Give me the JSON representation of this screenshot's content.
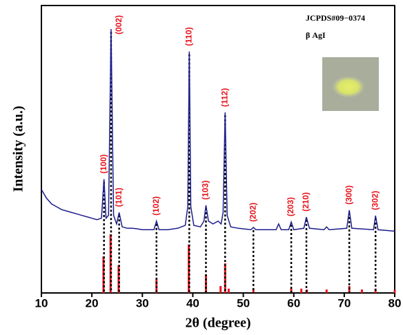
{
  "chart_data": {
    "type": "line",
    "x_label": "2θ (degree)",
    "y_label": "Intensity (a.u.)",
    "annotations": [
      "JCPDS#09−0374",
      "β AgI"
    ],
    "xlim": [
      10,
      80
    ],
    "xticks": [
      10,
      20,
      30,
      40,
      50,
      60,
      70,
      80
    ],
    "ylim": [
      0,
      100
    ],
    "x": [
      10,
      11,
      12,
      13,
      14,
      15,
      16,
      17,
      18,
      19,
      20,
      21,
      21.9,
      22.4,
      22.8,
      23.3,
      23.8,
      24.3,
      24.9,
      25.4,
      26,
      27,
      28,
      29,
      30,
      31,
      32.3,
      32.8,
      33.3,
      35,
      37,
      38.5,
      39,
      39.3,
      39.6,
      40.2,
      41.5,
      42.2,
      42.6,
      43.1,
      44,
      45,
      45.6,
      46,
      46.4,
      46.8,
      47.5,
      49,
      51.5,
      52,
      52.5,
      56.5,
      57,
      57.5,
      59,
      59.5,
      60,
      62,
      62.5,
      63.1,
      66,
      66.5,
      67,
      70.5,
      71,
      71.5,
      75.8,
      76.2,
      76.7,
      80
    ],
    "series": [
      {
        "color": "#1c1c8c",
        "values": [
          36,
          33,
          31,
          30,
          29,
          28.5,
          28,
          27.5,
          27,
          26.5,
          26,
          25.5,
          26,
          39.6,
          26,
          27,
          91.8,
          27,
          24,
          28,
          23,
          22.5,
          22.5,
          22.3,
          22,
          22,
          22,
          25,
          22,
          22,
          22.5,
          23.5,
          30,
          84,
          30,
          23.5,
          23,
          25,
          30.5,
          25,
          24,
          25,
          24,
          28,
          62.8,
          27,
          23,
          22.5,
          22,
          22.8,
          22,
          22,
          24,
          22,
          22,
          24.7,
          22,
          22.5,
          26.4,
          22.5,
          22,
          23,
          22,
          22.5,
          28.8,
          22.5,
          22,
          26.9,
          22,
          21.5
        ]
      }
    ],
    "reference": {
      "color": "#e8141c",
      "x": [
        22.3,
        23.7,
        25.3,
        32.8,
        39.2,
        42.6,
        45.5,
        46.4,
        47.1,
        52,
        59.5,
        61.5,
        62.6,
        66.5,
        71,
        73.5,
        76.2,
        80
      ],
      "values": [
        12.7,
        20.4,
        9.6,
        4.8,
        16.8,
        6.5,
        2.4,
        10.3,
        1.5,
        1.5,
        1.5,
        1.5,
        1.2,
        1.2,
        2.4,
        1.2,
        1.5,
        1
      ]
    },
    "reflections": [
      {
        "label": "(100)",
        "x": 22.4
      },
      {
        "label": "(002)",
        "x": 23.8
      },
      {
        "label": "(101)",
        "x": 25.4
      },
      {
        "label": "(102)",
        "x": 32.8
      },
      {
        "label": "(110)",
        "x": 39.3
      },
      {
        "label": "(103)",
        "x": 42.6
      },
      {
        "label": "(112)",
        "x": 46.4
      },
      {
        "label": "(202)",
        "x": 52
      },
      {
        "label": "(203)",
        "x": 59.5
      },
      {
        "label": "(210)",
        "x": 62.5
      },
      {
        "label": "(300)",
        "x": 71
      },
      {
        "label": "(302)",
        "x": 76.2
      }
    ]
  }
}
